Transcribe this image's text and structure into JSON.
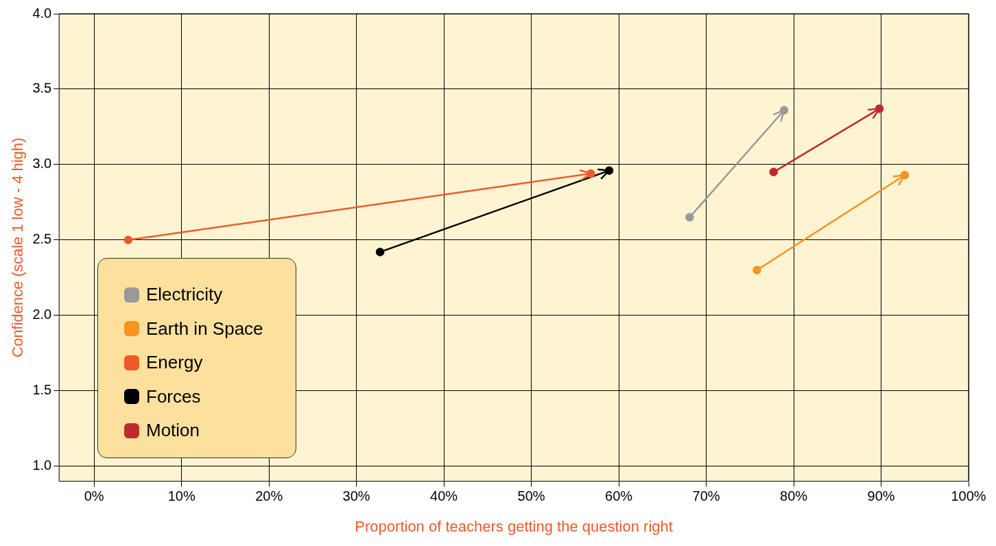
{
  "chart_data": {
    "type": "line",
    "xlabel": "Proportion of teachers getting the question right",
    "ylabel": "Confidence (scale 1 low - 4 high)",
    "xlim": [
      -4,
      100
    ],
    "ylim": [
      0.9,
      4
    ],
    "xticks": [
      {
        "value": 0,
        "label": "0%"
      },
      {
        "value": 10,
        "label": "10%"
      },
      {
        "value": 20,
        "label": "20%"
      },
      {
        "value": 30,
        "label": "30%"
      },
      {
        "value": 40,
        "label": "40%"
      },
      {
        "value": 50,
        "label": "50%"
      },
      {
        "value": 60,
        "label": "60%"
      },
      {
        "value": 70,
        "label": "70%"
      },
      {
        "value": 80,
        "label": "80%"
      },
      {
        "value": 90,
        "label": "90%"
      },
      {
        "value": 100,
        "label": "100%"
      }
    ],
    "yticks": [
      {
        "value": 1,
        "label": "1.0"
      },
      {
        "value": 1.5,
        "label": "1.5"
      },
      {
        "value": 2,
        "label": "2.0"
      },
      {
        "value": 2.5,
        "label": "2.5"
      },
      {
        "value": 3,
        "label": "3.0"
      },
      {
        "value": 3.5,
        "label": "3.5"
      },
      {
        "value": 4,
        "label": "4.0"
      }
    ],
    "grid": true,
    "legend": "bottom left",
    "marker": "circle",
    "line_style": "solid",
    "series": [
      {
        "name": "Electricity",
        "color": "#999999",
        "x": [
          68.1,
          78.9
        ],
        "values": [
          2.65,
          3.36
        ]
      },
      {
        "name": "Earth in Space",
        "color": "#f7941d",
        "x": [
          75.8,
          92.7
        ],
        "values": [
          2.3,
          2.93
        ]
      },
      {
        "name": "Energy",
        "color": "#ef5a28",
        "x": [
          3.9,
          56.8
        ],
        "values": [
          2.5,
          2.94
        ]
      },
      {
        "name": "Forces",
        "color": "#000000",
        "x": [
          32.7,
          58.9
        ],
        "values": [
          2.42,
          2.96
        ]
      },
      {
        "name": "Motion",
        "color": "#be2a2e",
        "x": [
          77.7,
          89.8
        ],
        "values": [
          2.95,
          3.37
        ]
      }
    ]
  }
}
